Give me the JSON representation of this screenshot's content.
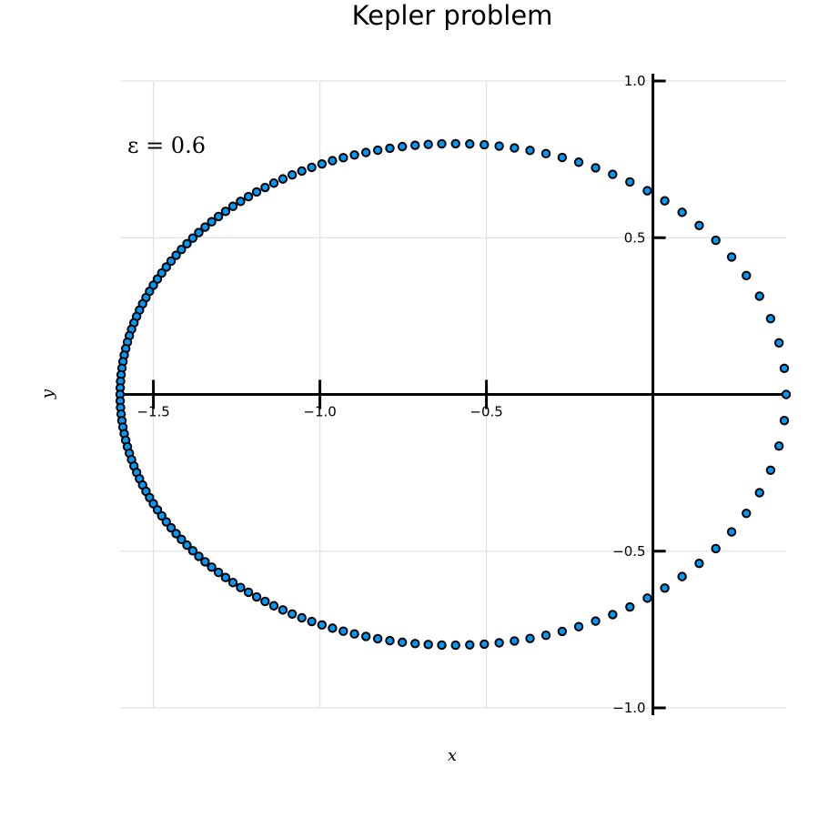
{
  "chart_data": {
    "type": "scatter",
    "title": "Kepler problem",
    "xlabel": "x",
    "ylabel": "y",
    "annotation": "ε = 0.6",
    "xlim": [
      -1.6,
      0.4
    ],
    "ylim": [
      -1.0,
      1.0
    ],
    "xticks": [
      -1.5,
      -1.0,
      -0.5
    ],
    "xtick_labels": [
      "−1.5",
      "−1.0",
      "−0.5"
    ],
    "yticks": [
      1.0,
      0.5,
      -0.5,
      -1.0
    ],
    "ytick_labels": [
      "1.0",
      "0.5",
      "−0.5",
      "−1.0"
    ],
    "grid": true,
    "legend": false,
    "marker_color": "#009af9",
    "semi_major_axis": 1.0,
    "eccentricity": 0.6,
    "focus_x": 0.0,
    "center_x": -0.6,
    "semi_minor_axis": 0.8,
    "n_points": 150
  }
}
